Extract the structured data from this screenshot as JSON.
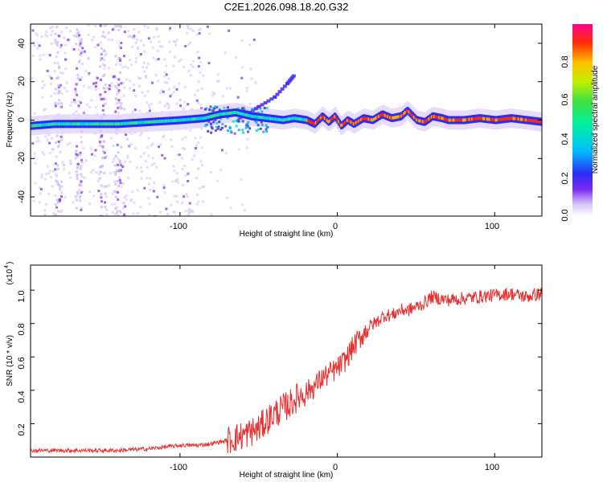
{
  "figure_title": "C2E1.2026.098.18.20.G32",
  "colorbar": {
    "label": "Normalized spectral amplitude",
    "ticks": [
      "0.0",
      "0.2",
      "0.4",
      "0.6",
      "0.8"
    ]
  },
  "top_panel": {
    "xlabel": "Height of straight line (km)",
    "ylabel": "Frequency (Hz)",
    "xticks": [
      "-100",
      "0",
      "100"
    ],
    "yticks": [
      "-40",
      "-20",
      "0",
      "20",
      "40"
    ]
  },
  "bottom_panel": {
    "xlabel": "Height of straight line (km)",
    "ylabel": "SNR (10 * v/v)",
    "multiplier_base": "(x10",
    "multiplier_exp": "4",
    "multiplier_close": ")",
    "xticks": [
      "-100",
      "0",
      "100"
    ],
    "yticks": [
      "0.2",
      "0.4",
      "0.6",
      "0.8",
      "1.0"
    ]
  },
  "colors": {
    "snr_line": "#e83030",
    "axis": "#000000"
  },
  "chart_data": [
    {
      "type": "heatmap",
      "title": "C2E1.2026.098.18.20.G32",
      "xlabel": "Height of straight line (km)",
      "ylabel": "Frequency (Hz)",
      "xlim": [
        -195,
        130
      ],
      "ylim": [
        -50,
        50
      ],
      "colorbar_range": [
        0,
        1
      ],
      "ridge": [
        [
          -195,
          -3
        ],
        [
          -180,
          -2
        ],
        [
          -160,
          -2
        ],
        [
          -140,
          -2
        ],
        [
          -120,
          -1
        ],
        [
          -100,
          0
        ],
        [
          -85,
          1
        ],
        [
          -75,
          3
        ],
        [
          -65,
          4
        ],
        [
          -55,
          2
        ],
        [
          -45,
          1
        ],
        [
          -35,
          0
        ],
        [
          -28,
          1
        ],
        [
          -20,
          0
        ],
        [
          -15,
          -2
        ],
        [
          -10,
          2
        ],
        [
          -6,
          -1
        ],
        [
          -2,
          2
        ],
        [
          2,
          -3
        ],
        [
          6,
          0
        ],
        [
          10,
          -2
        ],
        [
          16,
          1
        ],
        [
          22,
          0
        ],
        [
          28,
          3
        ],
        [
          34,
          1
        ],
        [
          40,
          2
        ],
        [
          44,
          5
        ],
        [
          50,
          0
        ],
        [
          55,
          -1
        ],
        [
          60,
          2
        ],
        [
          66,
          1
        ],
        [
          70,
          0
        ],
        [
          80,
          0
        ],
        [
          90,
          1
        ],
        [
          100,
          0
        ],
        [
          110,
          1
        ],
        [
          120,
          0
        ],
        [
          130,
          -1
        ]
      ],
      "diagonal_branch": [
        [
          -60,
          2
        ],
        [
          -50,
          7
        ],
        [
          -40,
          12
        ],
        [
          -32,
          19
        ],
        [
          -28,
          23
        ]
      ]
    },
    {
      "type": "line",
      "xlabel": "Height of straight line (km)",
      "ylabel": "SNR (10 * v/v)",
      "y_multiplier": 10000,
      "xlim": [
        -195,
        130
      ],
      "ylim": [
        0,
        1.15
      ],
      "x": [
        -195,
        -180,
        -160,
        -140,
        -120,
        -110,
        -100,
        -90,
        -80,
        -70,
        -60,
        -50,
        -45,
        -40,
        -35,
        -30,
        -25,
        -20,
        -15,
        -10,
        -5,
        0,
        5,
        10,
        15,
        20,
        25,
        30,
        35,
        40,
        45,
        50,
        55,
        60,
        70,
        80,
        90,
        100,
        110,
        120,
        130
      ],
      "y": [
        0.04,
        0.04,
        0.04,
        0.04,
        0.05,
        0.06,
        0.07,
        0.07,
        0.08,
        0.1,
        0.13,
        0.17,
        0.22,
        0.26,
        0.29,
        0.32,
        0.36,
        0.39,
        0.42,
        0.47,
        0.5,
        0.53,
        0.58,
        0.66,
        0.72,
        0.78,
        0.81,
        0.85,
        0.85,
        0.88,
        0.88,
        0.9,
        0.92,
        0.96,
        0.94,
        0.95,
        0.96,
        0.97,
        0.98,
        0.96,
        0.98
      ]
    }
  ]
}
